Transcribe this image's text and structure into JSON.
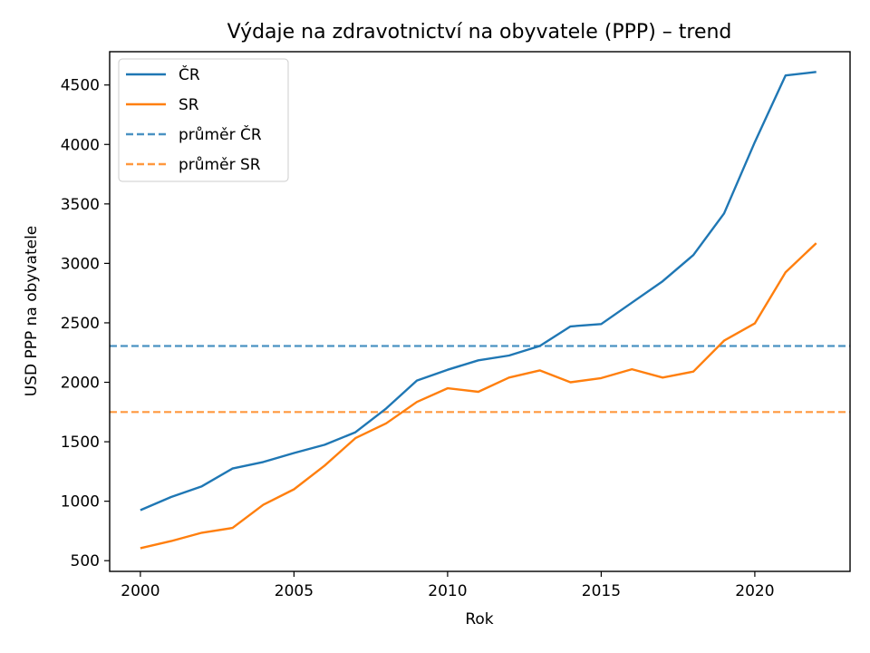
{
  "chart_data": {
    "type": "line",
    "title": "Výdaje na zdravotnictví na obyvatele (PPP) – trend",
    "xlabel": "Rok",
    "ylabel": "USD PPP na obyvatele",
    "x": [
      2000,
      2001,
      2002,
      2003,
      2004,
      2005,
      2006,
      2007,
      2008,
      2009,
      2010,
      2011,
      2012,
      2013,
      2014,
      2015,
      2016,
      2017,
      2018,
      2019,
      2020,
      2021,
      2022
    ],
    "xlim": [
      1999,
      2023.1
    ],
    "ylim": [
      410,
      4780
    ],
    "xticks": [
      "2000",
      "2005",
      "2010",
      "2015",
      "2020"
    ],
    "yticks": [
      "500",
      "1000",
      "1500",
      "2000",
      "2500",
      "3000",
      "3500",
      "4000",
      "4500"
    ],
    "grid": false,
    "legend_position": "top-left",
    "series": [
      {
        "name": "ČR",
        "color": "#1f77b4",
        "style": "solid",
        "values": [
          925,
          1035,
          1125,
          1275,
          1330,
          1405,
          1475,
          1580,
          1780,
          2015,
          2105,
          2185,
          2225,
          2305,
          2470,
          2490,
          2670,
          2850,
          3070,
          3420,
          4020,
          4580,
          4610
        ]
      },
      {
        "name": "SR",
        "color": "#ff7f0e",
        "style": "solid",
        "values": [
          605,
          665,
          735,
          775,
          970,
          1100,
          1300,
          1530,
          1655,
          1835,
          1950,
          1920,
          2040,
          2100,
          2000,
          2035,
          2110,
          2040,
          2090,
          2350,
          2495,
          2925,
          3170
        ]
      }
    ],
    "reference_lines": [
      {
        "name": "průměr ČR",
        "value": 2305,
        "color": "#1f77b4",
        "style": "dashed"
      },
      {
        "name": "průměr SR",
        "value": 1750,
        "color": "#ff7f0e",
        "style": "dashed"
      }
    ]
  }
}
